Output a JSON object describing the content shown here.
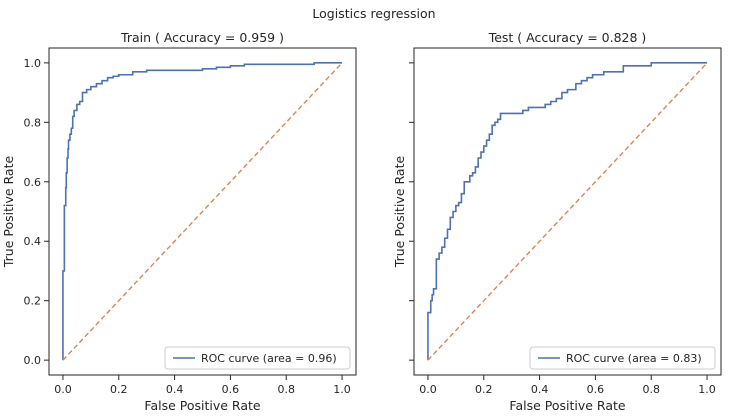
{
  "figure": {
    "suptitle": "Logistics regression"
  },
  "colors": {
    "roc": "#4c72b0",
    "diagonal": "#dd8452",
    "axes": "#262626",
    "legend_border": "#cccccc"
  },
  "chart_data": [
    {
      "type": "line",
      "title": "Train ( Accuracy = 0.959 )",
      "xlabel": "False Positive Rate",
      "ylabel": "True Positive Rate",
      "xlim": [
        -0.05,
        1.05
      ],
      "ylim": [
        -0.05,
        1.05
      ],
      "x_ticks": [
        "0.0",
        "0.2",
        "0.4",
        "0.6",
        "0.8",
        "1.0"
      ],
      "y_ticks": [
        "0.0",
        "0.2",
        "0.4",
        "0.6",
        "0.8",
        "1.0"
      ],
      "show_y_tick_labels": true,
      "legend": {
        "label": "ROC curve (area = 0.96)",
        "position": "lower-right"
      },
      "series": [
        {
          "name": "ROC curve (area = 0.96)",
          "style": "solid",
          "x": [
            0,
            0,
            0.005,
            0.005,
            0.01,
            0.01,
            0.012,
            0.012,
            0.015,
            0.015,
            0.018,
            0.018,
            0.02,
            0.02,
            0.025,
            0.025,
            0.03,
            0.03,
            0.035,
            0.035,
            0.04,
            0.04,
            0.05,
            0.05,
            0.06,
            0.06,
            0.07,
            0.07,
            0.085,
            0.085,
            0.1,
            0.1,
            0.12,
            0.12,
            0.14,
            0.14,
            0.16,
            0.16,
            0.18,
            0.18,
            0.2,
            0.2,
            0.25,
            0.25,
            0.3,
            0.3,
            0.5,
            0.5,
            0.55,
            0.55,
            0.6,
            0.6,
            0.65,
            0.65,
            0.9,
            0.9,
            1.0
          ],
          "y": [
            0,
            0.3,
            0.3,
            0.52,
            0.52,
            0.58,
            0.58,
            0.63,
            0.63,
            0.68,
            0.68,
            0.71,
            0.71,
            0.74,
            0.74,
            0.76,
            0.76,
            0.78,
            0.78,
            0.82,
            0.82,
            0.84,
            0.84,
            0.86,
            0.86,
            0.87,
            0.87,
            0.9,
            0.9,
            0.91,
            0.91,
            0.92,
            0.92,
            0.93,
            0.93,
            0.94,
            0.94,
            0.95,
            0.95,
            0.955,
            0.955,
            0.96,
            0.96,
            0.97,
            0.97,
            0.975,
            0.975,
            0.98,
            0.98,
            0.985,
            0.985,
            0.99,
            0.99,
            0.995,
            0.995,
            1.0,
            1.0
          ]
        },
        {
          "name": "",
          "style": "dashed",
          "x": [
            0,
            1
          ],
          "y": [
            0,
            1
          ]
        }
      ]
    },
    {
      "type": "line",
      "title": "Test ( Accuracy = 0.828 )",
      "xlabel": "False Positive Rate",
      "ylabel": "True Positive Rate",
      "xlim": [
        -0.05,
        1.05
      ],
      "ylim": [
        -0.05,
        1.05
      ],
      "x_ticks": [
        "0.0",
        "0.2",
        "0.4",
        "0.6",
        "0.8",
        "1.0"
      ],
      "y_ticks": [
        "0.0",
        "0.2",
        "0.4",
        "0.6",
        "0.8",
        "1.0"
      ],
      "show_y_tick_labels": false,
      "legend": {
        "label": "ROC curve (area = 0.83)",
        "position": "lower-right"
      },
      "series": [
        {
          "name": "ROC curve (area = 0.83)",
          "style": "solid",
          "x": [
            0,
            0,
            0.01,
            0.01,
            0.015,
            0.015,
            0.02,
            0.02,
            0.03,
            0.03,
            0.04,
            0.04,
            0.05,
            0.05,
            0.06,
            0.06,
            0.07,
            0.07,
            0.08,
            0.08,
            0.09,
            0.09,
            0.1,
            0.1,
            0.11,
            0.11,
            0.12,
            0.12,
            0.13,
            0.13,
            0.15,
            0.15,
            0.16,
            0.16,
            0.17,
            0.17,
            0.18,
            0.18,
            0.19,
            0.19,
            0.2,
            0.2,
            0.21,
            0.21,
            0.22,
            0.22,
            0.23,
            0.23,
            0.24,
            0.24,
            0.25,
            0.25,
            0.26,
            0.26,
            0.34,
            0.34,
            0.36,
            0.36,
            0.42,
            0.42,
            0.44,
            0.44,
            0.46,
            0.46,
            0.48,
            0.48,
            0.5,
            0.5,
            0.53,
            0.53,
            0.55,
            0.55,
            0.57,
            0.57,
            0.59,
            0.59,
            0.63,
            0.63,
            0.7,
            0.7,
            0.8,
            0.8,
            1.0
          ],
          "y": [
            0,
            0.16,
            0.16,
            0.2,
            0.2,
            0.22,
            0.22,
            0.24,
            0.24,
            0.34,
            0.34,
            0.36,
            0.36,
            0.38,
            0.38,
            0.41,
            0.41,
            0.44,
            0.44,
            0.48,
            0.48,
            0.5,
            0.5,
            0.52,
            0.52,
            0.53,
            0.53,
            0.56,
            0.56,
            0.6,
            0.6,
            0.62,
            0.62,
            0.63,
            0.63,
            0.65,
            0.65,
            0.68,
            0.68,
            0.7,
            0.7,
            0.72,
            0.72,
            0.74,
            0.74,
            0.76,
            0.76,
            0.79,
            0.79,
            0.8,
            0.8,
            0.81,
            0.81,
            0.83,
            0.83,
            0.84,
            0.84,
            0.85,
            0.85,
            0.86,
            0.86,
            0.87,
            0.87,
            0.88,
            0.88,
            0.9,
            0.9,
            0.91,
            0.91,
            0.93,
            0.93,
            0.94,
            0.94,
            0.95,
            0.95,
            0.96,
            0.96,
            0.97,
            0.97,
            0.99,
            0.99,
            1.0,
            1.0
          ]
        },
        {
          "name": "",
          "style": "dashed",
          "x": [
            0,
            1
          ],
          "y": [
            0,
            1
          ]
        }
      ]
    }
  ]
}
